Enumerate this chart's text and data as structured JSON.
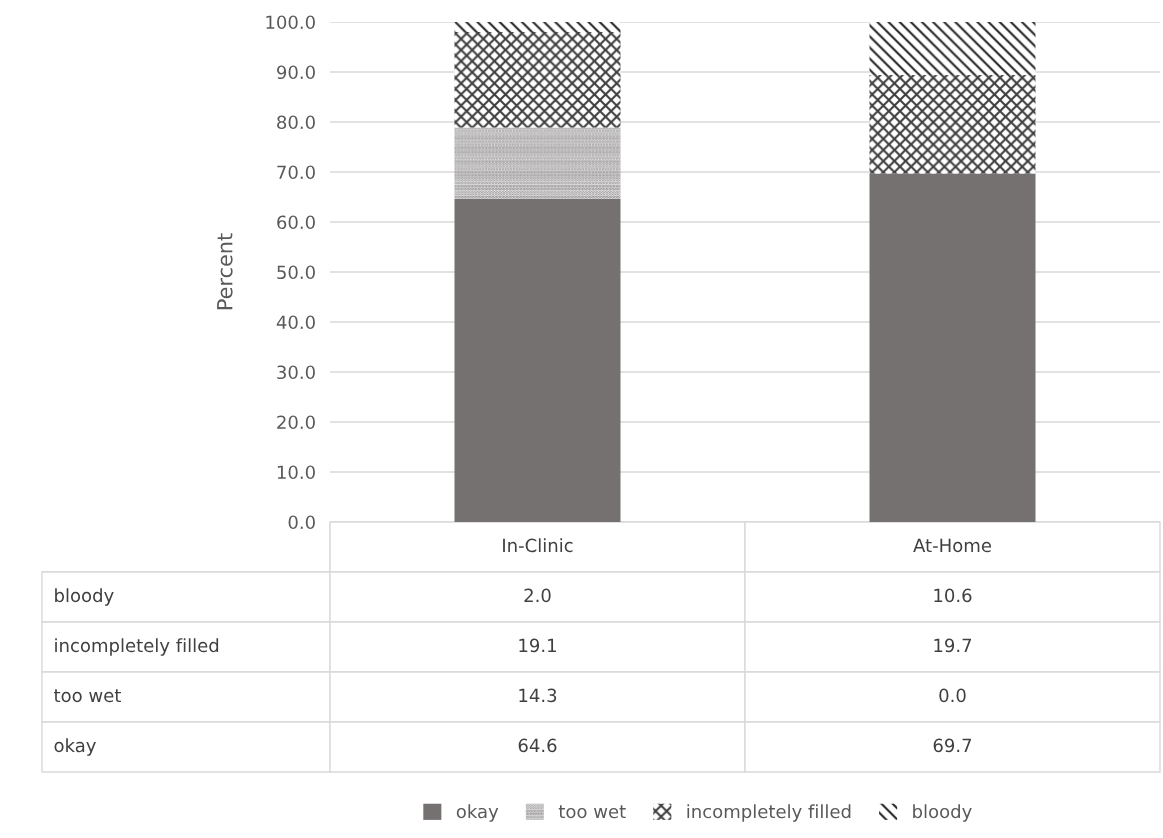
{
  "chart_data": {
    "type": "bar",
    "stacked": true,
    "ylabel": "Percent",
    "categories": [
      "In-Clinic",
      "At-Home"
    ],
    "series": [
      {
        "name": "okay",
        "color": "#757171",
        "values": [
          64.6,
          69.7
        ],
        "value_labels": [
          "64.6",
          "69.7"
        ]
      },
      {
        "name": "too wet",
        "color": "#757171",
        "values": [
          14.3,
          0.0
        ],
        "value_labels": [
          "14.3",
          "0.0"
        ]
      },
      {
        "name": "incompletely filled",
        "color": "#404040",
        "values": [
          19.1,
          19.7
        ],
        "value_labels": [
          "19.1",
          "19.7"
        ]
      },
      {
        "name": "bloody",
        "color": "#262626",
        "values": [
          2.0,
          10.6
        ],
        "value_labels": [
          "2.0",
          "10.6"
        ]
      }
    ],
    "ylim": [
      0,
      100
    ],
    "yticks": [
      {
        "value": 0,
        "label": "0.0"
      },
      {
        "value": 10,
        "label": "10.0"
      },
      {
        "value": 20,
        "label": "20.0"
      },
      {
        "value": 30,
        "label": "30.0"
      },
      {
        "value": 40,
        "label": "40.0"
      },
      {
        "value": 50,
        "label": "50.0"
      },
      {
        "value": 60,
        "label": "60.0"
      },
      {
        "value": 70,
        "label": "70.0"
      },
      {
        "value": 80,
        "label": "80.0"
      },
      {
        "value": 90,
        "label": "90.0"
      },
      {
        "value": 100,
        "label": "100.0"
      }
    ],
    "grid": "y",
    "legend": "bottom"
  }
}
